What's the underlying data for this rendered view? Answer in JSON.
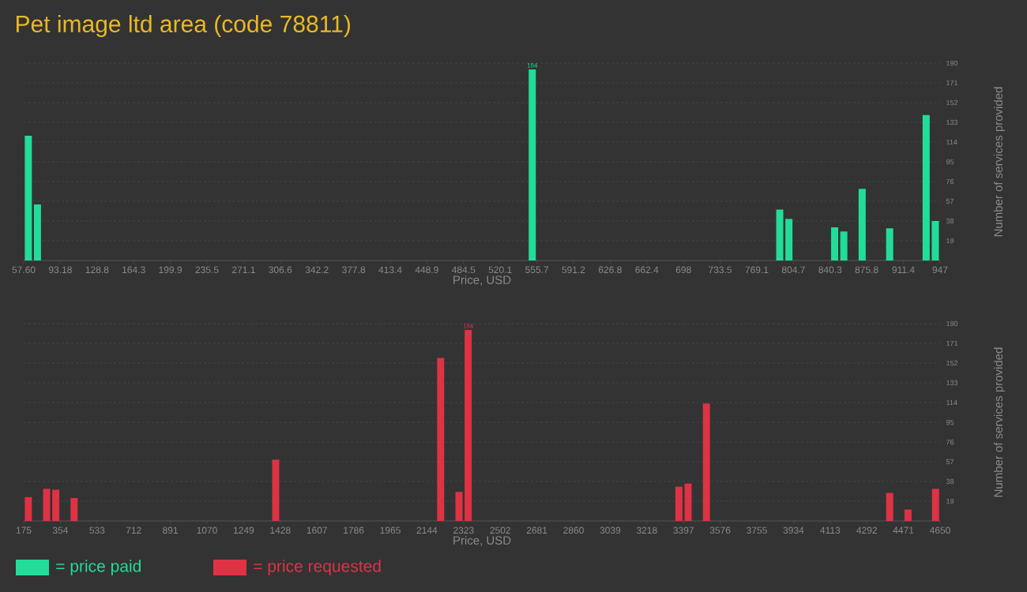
{
  "chart_data": [
    {
      "type": "bar",
      "title": "Pet image ltd area (code 78811)",
      "xlabel": "Price, USD",
      "ylabel": "Number of services provided",
      "x": [
        62.05,
        70.94,
        551.2,
        791.4,
        800.3,
        844.7,
        853.6,
        871.4,
        898.1,
        933.5,
        942.4
      ],
      "series": [
        {
          "name": "= price paid",
          "color": "#22dd99",
          "values": [
            120,
            54,
            184,
            49,
            40,
            32,
            28,
            69,
            31,
            140,
            38
          ],
          "value_labels": [
            null,
            null,
            "184",
            null,
            null,
            null,
            null,
            null,
            null,
            null,
            null
          ]
        }
      ],
      "xlim": [
        57.6,
        947
      ],
      "xticks": [
        {
          "value": 57.6,
          "label": "57.60"
        },
        93.18,
        128.8,
        164.3,
        199.9,
        235.5,
        271.1,
        306.6,
        342.2,
        377.8,
        413.4,
        448.9,
        484.5,
        520.1,
        555.7,
        591.2,
        626.8,
        662.4,
        698,
        733.5,
        769.1,
        804.7,
        840.3,
        875.8,
        911.4,
        947
      ],
      "ylim": [
        0,
        190
      ],
      "yticks": [
        19,
        38,
        57,
        76,
        95,
        114,
        133,
        152,
        171,
        190
      ],
      "grid": "y",
      "legend": "bottom left"
    },
    {
      "type": "bar",
      "xlabel": "Price, USD",
      "ylabel": "Number of services provided",
      "x": [
        197.4,
        286.9,
        331.6,
        421.1,
        1405.6,
        2211.1,
        2300.6,
        2345.4,
        3374.6,
        3419.4,
        3508.9,
        4403.9,
        4493.4,
        4627.6
      ],
      "series": [
        {
          "name": "= price requested",
          "color": "#dd3344",
          "values": [
            23,
            31,
            30,
            22,
            59,
            157,
            28,
            184,
            33,
            36,
            113,
            27,
            11,
            31
          ],
          "value_labels": [
            null,
            null,
            null,
            null,
            null,
            null,
            null,
            "184",
            null,
            null,
            null,
            null,
            null,
            null
          ]
        }
      ],
      "xlim": [
        175,
        4650
      ],
      "xticks": [
        175,
        354,
        533,
        712,
        891,
        1070,
        1249,
        1428,
        1607,
        1786,
        1965,
        2144,
        2323,
        2502,
        2681,
        2860,
        3039,
        3218,
        3397,
        3576,
        3755,
        3934,
        4113,
        4292,
        4471,
        4650
      ],
      "ylim": [
        0,
        190
      ],
      "yticks": [
        19,
        38,
        57,
        76,
        95,
        114,
        133,
        152,
        171,
        190
      ],
      "grid": "y",
      "legend": "bottom left"
    }
  ]
}
